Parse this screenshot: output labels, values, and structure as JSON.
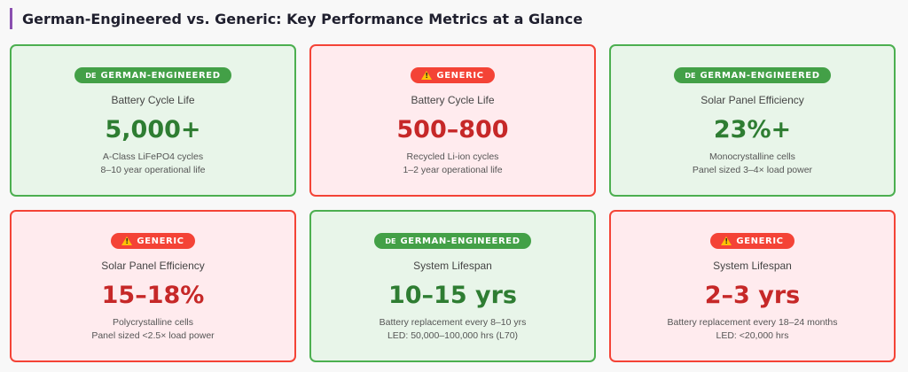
{
  "page_title": "German-Engineered vs. Generic: Key Performance Metrics at a Glance",
  "colors": {
    "accent_bar": "#8a4fb0",
    "good_bg": "#e8f5e9",
    "good_border": "#4caf50",
    "good_value": "#2e7d32",
    "bad_bg": "#ffebee",
    "bad_border": "#f44336",
    "bad_value": "#c62828"
  },
  "cards": [
    {
      "variant": "good",
      "badge_icon": "DE",
      "badge": "GERMAN-ENGINEERED",
      "label": "Battery Cycle Life",
      "value": "5,000+",
      "note1": "A-Class LiFePO4 cycles",
      "note2": "8–10 year operational life"
    },
    {
      "variant": "bad",
      "badge_icon": "warning-icon",
      "badge": "GENERIC",
      "label": "Battery Cycle Life",
      "value": "500–800",
      "note1": "Recycled Li-ion cycles",
      "note2": "1–2 year operational life"
    },
    {
      "variant": "good",
      "badge_icon": "DE",
      "badge": "GERMAN-ENGINEERED",
      "label": "Solar Panel Efficiency",
      "value": "23%+",
      "note1": "Monocrystalline cells",
      "note2": "Panel sized 3–4× load power"
    },
    {
      "variant": "bad",
      "badge_icon": "warning-icon",
      "badge": "GENERIC",
      "label": "Solar Panel Efficiency",
      "value": "15–18%",
      "note1": "Polycrystalline cells",
      "note2": "Panel sized <2.5× load power"
    },
    {
      "variant": "good",
      "badge_icon": "DE",
      "badge": "GERMAN-ENGINEERED",
      "label": "System Lifespan",
      "value": "10–15 yrs",
      "note1": "Battery replacement every 8–10 yrs",
      "note2": "LED: 50,000–100,000 hrs (L70)"
    },
    {
      "variant": "bad",
      "badge_icon": "warning-icon",
      "badge": "GENERIC",
      "label": "System Lifespan",
      "value": "2–3 yrs",
      "note1": "Battery replacement every 18–24 months",
      "note2": "LED: <20,000 hrs"
    }
  ]
}
